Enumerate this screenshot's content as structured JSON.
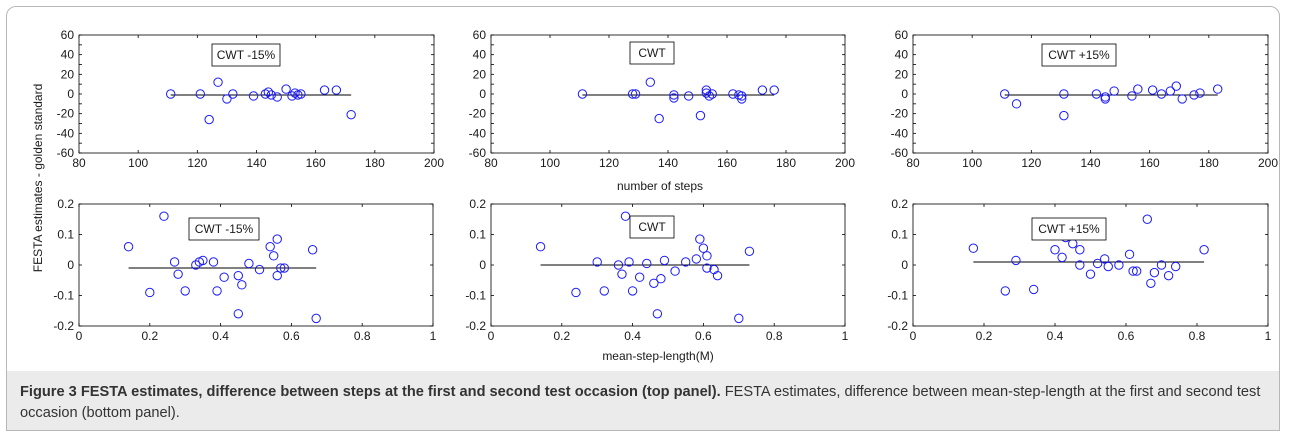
{
  "figure": {
    "caption_bold": "Figure 3 FESTA estimates, difference between steps at the first and second test occasion (top panel).",
    "caption_rest": " FESTA estimates, difference between mean-step-length at the first and second test occasion (bottom panel)."
  },
  "colors": {
    "marker": "#1a1aff",
    "line": "#000000"
  },
  "shared_labels": {
    "ylabel": "FESTA estimates - golden standard",
    "xlabel_top": "number of steps",
    "xlabel_bottom": "mean-step-length(M)"
  },
  "chart_data": [
    {
      "type": "scatter",
      "label": "CWT -15%",
      "xlim": [
        80,
        200
      ],
      "ylim": [
        -60,
        60
      ],
      "xticks": [
        "80",
        "100",
        "120",
        "140",
        "160",
        "180",
        "200"
      ],
      "yticks": [
        "-60",
        "-50",
        "-40",
        "-30",
        "-20",
        "-10",
        "0",
        "10",
        "20",
        "30",
        "40",
        "50",
        "60"
      ],
      "mean_line": {
        "x": [
          111,
          172
        ],
        "y": [
          -1,
          -1
        ]
      },
      "points": [
        [
          111,
          0
        ],
        [
          121,
          0
        ],
        [
          124,
          -26
        ],
        [
          127,
          12
        ],
        [
          130,
          -5
        ],
        [
          132,
          0
        ],
        [
          139,
          -2
        ],
        [
          143,
          0
        ],
        [
          144,
          2
        ],
        [
          145,
          -1
        ],
        [
          147,
          -3
        ],
        [
          150,
          5
        ],
        [
          152,
          -2
        ],
        [
          153,
          1
        ],
        [
          154,
          -1
        ],
        [
          155,
          0
        ],
        [
          163,
          4
        ],
        [
          167,
          4
        ],
        [
          172,
          -21
        ]
      ]
    },
    {
      "type": "scatter",
      "label": "CWT",
      "xlim": [
        80,
        200
      ],
      "ylim": [
        -60,
        60
      ],
      "xticks": [
        "80",
        "100",
        "120",
        "140",
        "160",
        "180",
        "200"
      ],
      "yticks": [
        "-60",
        "-50",
        "-40",
        "-30",
        "-20",
        "-10",
        "0",
        "10",
        "20",
        "30",
        "40",
        "50",
        "60"
      ],
      "mean_line": {
        "x": [
          111,
          176
        ],
        "y": [
          -1,
          -1
        ]
      },
      "points": [
        [
          111,
          0
        ],
        [
          128,
          0
        ],
        [
          129,
          0
        ],
        [
          134,
          12
        ],
        [
          137,
          -25
        ],
        [
          142,
          -4
        ],
        [
          142,
          -1
        ],
        [
          147,
          -2
        ],
        [
          151,
          -22
        ],
        [
          153,
          4
        ],
        [
          153,
          1
        ],
        [
          154,
          -2
        ],
        [
          155,
          0
        ],
        [
          162,
          0
        ],
        [
          164,
          -1
        ],
        [
          165,
          -5
        ],
        [
          165,
          -2
        ],
        [
          172,
          4
        ],
        [
          176,
          4
        ]
      ]
    },
    {
      "type": "scatter",
      "label": "CWT +15%",
      "xlim": [
        80,
        200
      ],
      "ylim": [
        -60,
        60
      ],
      "xticks": [
        "80",
        "100",
        "120",
        "140",
        "160",
        "180",
        "200"
      ],
      "yticks": [
        "-60",
        "-50",
        "-40",
        "-30",
        "-20",
        "-10",
        "0",
        "10",
        "20",
        "30",
        "40",
        "50",
        "60"
      ],
      "mean_line": {
        "x": [
          111,
          183
        ],
        "y": [
          -1,
          -1
        ]
      },
      "points": [
        [
          111,
          0
        ],
        [
          115,
          -10
        ],
        [
          131,
          0
        ],
        [
          131,
          -22
        ],
        [
          142,
          0
        ],
        [
          145,
          -5
        ],
        [
          145,
          -3
        ],
        [
          148,
          3
        ],
        [
          154,
          -2
        ],
        [
          156,
          5
        ],
        [
          161,
          4
        ],
        [
          164,
          0
        ],
        [
          167,
          3
        ],
        [
          169,
          8
        ],
        [
          171,
          -5
        ],
        [
          175,
          -1
        ],
        [
          177,
          1
        ],
        [
          183,
          5
        ]
      ]
    },
    {
      "type": "scatter",
      "label": "CWT -15%",
      "xlim": [
        0,
        1
      ],
      "ylim": [
        -0.2,
        0.2
      ],
      "xticks": [
        "0",
        "0.2",
        "0.4",
        "0.6",
        "0.8",
        "1"
      ],
      "yticks": [
        "-0.2",
        "-0.1",
        "0",
        "0.1",
        "0.2"
      ],
      "mean_line": {
        "x": [
          0.14,
          0.67
        ],
        "y": [
          -0.01,
          -0.01
        ]
      },
      "points": [
        [
          0.14,
          0.06
        ],
        [
          0.2,
          -0.09
        ],
        [
          0.24,
          0.16
        ],
        [
          0.27,
          0.01
        ],
        [
          0.28,
          -0.03
        ],
        [
          0.3,
          -0.085
        ],
        [
          0.33,
          0.0
        ],
        [
          0.34,
          0.01
        ],
        [
          0.35,
          0.015
        ],
        [
          0.38,
          0.01
        ],
        [
          0.39,
          -0.085
        ],
        [
          0.41,
          -0.04
        ],
        [
          0.45,
          -0.16
        ],
        [
          0.45,
          -0.035
        ],
        [
          0.46,
          -0.065
        ],
        [
          0.48,
          0.005
        ],
        [
          0.51,
          -0.015
        ],
        [
          0.54,
          0.06
        ],
        [
          0.55,
          0.03
        ],
        [
          0.56,
          0.085
        ],
        [
          0.56,
          -0.035
        ],
        [
          0.57,
          -0.01
        ],
        [
          0.58,
          -0.01
        ],
        [
          0.66,
          0.05
        ],
        [
          0.67,
          -0.175
        ]
      ]
    },
    {
      "type": "scatter",
      "label": "CWT",
      "xlim": [
        0,
        1
      ],
      "ylim": [
        -0.2,
        0.2
      ],
      "xticks": [
        "0",
        "0.2",
        "0.4",
        "0.6",
        "0.8",
        "1"
      ],
      "yticks": [
        "-0.2",
        "-0.1",
        "0",
        "0.1",
        "0.2"
      ],
      "mean_line": {
        "x": [
          0.14,
          0.73
        ],
        "y": [
          0.0,
          0.0
        ]
      },
      "points": [
        [
          0.14,
          0.06
        ],
        [
          0.24,
          -0.09
        ],
        [
          0.3,
          0.01
        ],
        [
          0.32,
          -0.085
        ],
        [
          0.36,
          0.0
        ],
        [
          0.37,
          -0.03
        ],
        [
          0.38,
          0.16
        ],
        [
          0.39,
          0.01
        ],
        [
          0.4,
          -0.085
        ],
        [
          0.42,
          -0.04
        ],
        [
          0.44,
          0.005
        ],
        [
          0.46,
          -0.06
        ],
        [
          0.47,
          -0.16
        ],
        [
          0.48,
          -0.045
        ],
        [
          0.49,
          0.015
        ],
        [
          0.52,
          -0.02
        ],
        [
          0.55,
          0.01
        ],
        [
          0.58,
          0.02
        ],
        [
          0.59,
          0.085
        ],
        [
          0.6,
          0.055
        ],
        [
          0.61,
          0.03
        ],
        [
          0.61,
          -0.01
        ],
        [
          0.63,
          -0.015
        ],
        [
          0.64,
          -0.035
        ],
        [
          0.7,
          -0.175
        ],
        [
          0.73,
          0.045
        ]
      ]
    },
    {
      "type": "scatter",
      "label": "CWT +15%",
      "xlim": [
        0,
        1
      ],
      "ylim": [
        -0.2,
        0.2
      ],
      "xticks": [
        "0",
        "0.2",
        "0.4",
        "0.6",
        "0.8",
        "1"
      ],
      "yticks": [
        "-0.2",
        "-0.1",
        "0",
        "0.1",
        "0.2"
      ],
      "mean_line": {
        "x": [
          0.17,
          0.82
        ],
        "y": [
          0.01,
          0.01
        ]
      },
      "points": [
        [
          0.17,
          0.055
        ],
        [
          0.26,
          -0.085
        ],
        [
          0.29,
          0.015
        ],
        [
          0.34,
          -0.08
        ],
        [
          0.4,
          0.05
        ],
        [
          0.42,
          0.025
        ],
        [
          0.43,
          0.09
        ],
        [
          0.45,
          0.07
        ],
        [
          0.47,
          0.0
        ],
        [
          0.47,
          0.05
        ],
        [
          0.5,
          -0.03
        ],
        [
          0.52,
          0.005
        ],
        [
          0.54,
          0.02
        ],
        [
          0.55,
          -0.005
        ],
        [
          0.58,
          0.0
        ],
        [
          0.61,
          0.035
        ],
        [
          0.62,
          -0.02
        ],
        [
          0.63,
          -0.02
        ],
        [
          0.66,
          0.15
        ],
        [
          0.67,
          -0.06
        ],
        [
          0.68,
          -0.025
        ],
        [
          0.7,
          0.0
        ],
        [
          0.72,
          -0.035
        ],
        [
          0.74,
          -0.005
        ],
        [
          0.82,
          0.05
        ]
      ]
    }
  ]
}
